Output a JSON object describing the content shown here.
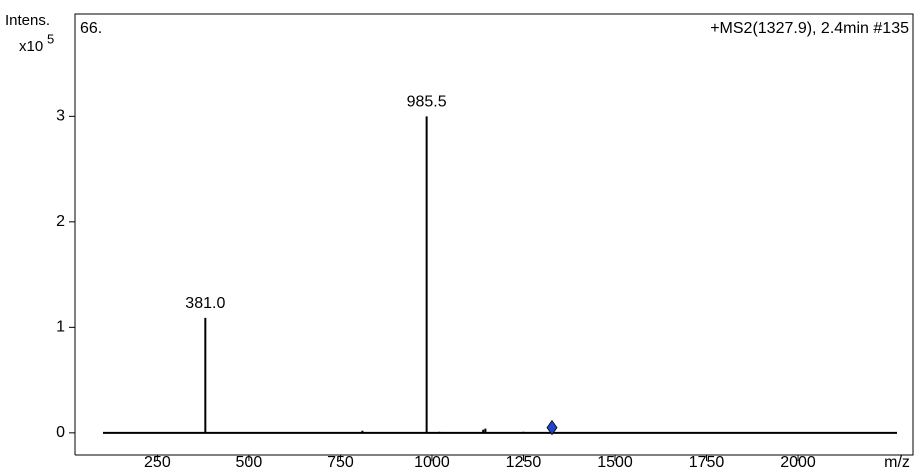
{
  "chart_data": {
    "type": "spectrum",
    "title": "+MS2(1327.9), 2.4min #135",
    "label": "66.",
    "y_label": "Intens.",
    "y_scale": "x10",
    "y_scale_exponent": "5",
    "x_label": "m/z",
    "x": [
      381.0,
      810,
      985.5,
      1020,
      1140,
      1146,
      1250
    ],
    "values": [
      1.09,
      0.02,
      3.0,
      0.01,
      0.03,
      0.04,
      0.01
    ],
    "x_labels": [
      "381.0",
      null,
      "985.5",
      null,
      null,
      null,
      null
    ],
    "color": "#000000",
    "precursor": {
      "x": 1327.9,
      "y": 0.05,
      "color": "#2244cc"
    },
    "xlim": [
      25,
      2314
    ],
    "xticks": [
      250,
      500,
      750,
      1000,
      1250,
      1500,
      1750,
      2000
    ],
    "ylim": [
      -0.21,
      3.97
    ],
    "yticks": [
      0,
      1,
      2,
      3
    ]
  }
}
